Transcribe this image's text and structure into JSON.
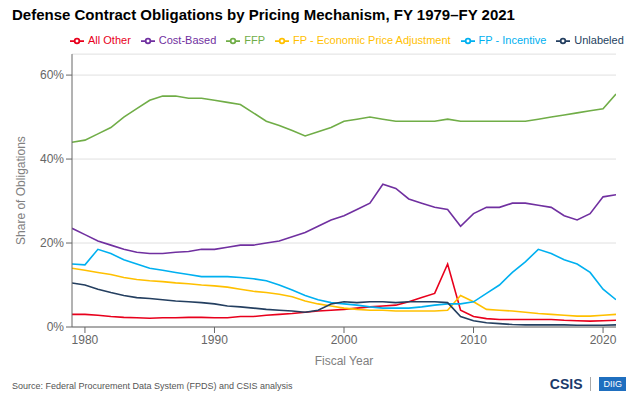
{
  "chart_data": {
    "type": "line",
    "title": "Defense Contract Obligations by Pricing Mechanism, FY 1979–FY 2021",
    "x_label": "Fiscal Year",
    "y_label": "Share of Obligations",
    "annotations": [
      "Source: Federal Procurement Data System (FPDS) and CSIS analysis",
      "CSIS",
      "DIIG"
    ],
    "x": [
      1979,
      1980,
      1981,
      1982,
      1983,
      1984,
      1985,
      1986,
      1987,
      1988,
      1989,
      1990,
      1991,
      1992,
      1993,
      1994,
      1995,
      1996,
      1997,
      1998,
      1999,
      2000,
      2001,
      2002,
      2003,
      2004,
      2005,
      2006,
      2007,
      2008,
      2009,
      2010,
      2011,
      2012,
      2013,
      2014,
      2015,
      2016,
      2017,
      2018,
      2019,
      2020,
      2021
    ],
    "series": [
      {
        "name": "All Other",
        "color": "#e8001c",
        "values": [
          0.03,
          0.03,
          0.028,
          0.025,
          0.023,
          0.022,
          0.021,
          0.022,
          0.022,
          0.023,
          0.023,
          0.022,
          0.022,
          0.025,
          0.025,
          0.028,
          0.03,
          0.032,
          0.035,
          0.038,
          0.04,
          0.042,
          0.045,
          0.048,
          0.05,
          0.052,
          0.06,
          0.07,
          0.08,
          0.15,
          0.04,
          0.025,
          0.02,
          0.018,
          0.018,
          0.018,
          0.018,
          0.018,
          0.016,
          0.015,
          0.014,
          0.015,
          0.016
        ]
      },
      {
        "name": "Cost-Based",
        "color": "#7030a0",
        "values": [
          0.235,
          0.22,
          0.205,
          0.195,
          0.185,
          0.178,
          0.175,
          0.175,
          0.178,
          0.18,
          0.185,
          0.185,
          0.19,
          0.195,
          0.195,
          0.2,
          0.205,
          0.215,
          0.225,
          0.24,
          0.255,
          0.265,
          0.28,
          0.295,
          0.34,
          0.33,
          0.305,
          0.295,
          0.285,
          0.28,
          0.24,
          0.27,
          0.285,
          0.285,
          0.295,
          0.295,
          0.29,
          0.285,
          0.265,
          0.255,
          0.27,
          0.31,
          0.315
        ]
      },
      {
        "name": "FFP",
        "color": "#70ad47",
        "values": [
          0.44,
          0.445,
          0.46,
          0.475,
          0.5,
          0.52,
          0.54,
          0.55,
          0.55,
          0.545,
          0.545,
          0.54,
          0.535,
          0.53,
          0.51,
          0.49,
          0.48,
          0.468,
          0.455,
          0.465,
          0.475,
          0.49,
          0.495,
          0.5,
          0.495,
          0.49,
          0.49,
          0.49,
          0.49,
          0.495,
          0.49,
          0.49,
          0.49,
          0.49,
          0.49,
          0.49,
          0.495,
          0.5,
          0.505,
          0.51,
          0.515,
          0.52,
          0.555
        ]
      },
      {
        "name": "FP - Economic Price Adjustment",
        "color": "#ffc000",
        "values": [
          0.14,
          0.135,
          0.13,
          0.125,
          0.118,
          0.113,
          0.11,
          0.108,
          0.105,
          0.103,
          0.1,
          0.098,
          0.095,
          0.09,
          0.085,
          0.082,
          0.078,
          0.072,
          0.062,
          0.055,
          0.05,
          0.045,
          0.042,
          0.04,
          0.04,
          0.038,
          0.038,
          0.038,
          0.038,
          0.04,
          0.075,
          0.06,
          0.042,
          0.04,
          0.038,
          0.035,
          0.032,
          0.03,
          0.028,
          0.026,
          0.026,
          0.028,
          0.03
        ]
      },
      {
        "name": "FP - Incentive",
        "color": "#00b0f0",
        "values": [
          0.15,
          0.148,
          0.185,
          0.175,
          0.16,
          0.15,
          0.14,
          0.135,
          0.13,
          0.125,
          0.12,
          0.12,
          0.12,
          0.118,
          0.115,
          0.11,
          0.1,
          0.088,
          0.075,
          0.065,
          0.058,
          0.055,
          0.052,
          0.048,
          0.045,
          0.045,
          0.045,
          0.048,
          0.052,
          0.055,
          0.055,
          0.06,
          0.08,
          0.1,
          0.13,
          0.155,
          0.185,
          0.175,
          0.16,
          0.15,
          0.13,
          0.09,
          0.065
        ]
      },
      {
        "name": "Unlabeled",
        "color": "#243f60",
        "values": [
          0.105,
          0.1,
          0.09,
          0.082,
          0.075,
          0.07,
          0.068,
          0.065,
          0.062,
          0.06,
          0.058,
          0.055,
          0.05,
          0.048,
          0.045,
          0.042,
          0.04,
          0.038,
          0.035,
          0.04,
          0.055,
          0.06,
          0.058,
          0.06,
          0.06,
          0.058,
          0.06,
          0.06,
          0.06,
          0.058,
          0.025,
          0.015,
          0.01,
          0.008,
          0.006,
          0.005,
          0.005,
          0.005,
          0.005,
          0.004,
          0.004,
          0.004,
          0.005
        ]
      }
    ],
    "xlim": [
      1979,
      2021
    ],
    "xticks": [
      1980,
      1990,
      2000,
      2010,
      2020
    ],
    "ylim": [
      0,
      0.65
    ],
    "yticks": [
      {
        "value": 0.0,
        "label": "0%"
      },
      {
        "value": 0.2,
        "label": "20%"
      },
      {
        "value": 0.4,
        "label": "40%"
      },
      {
        "value": 0.6,
        "label": "60%"
      }
    ],
    "grid": "y",
    "legend": "top"
  }
}
